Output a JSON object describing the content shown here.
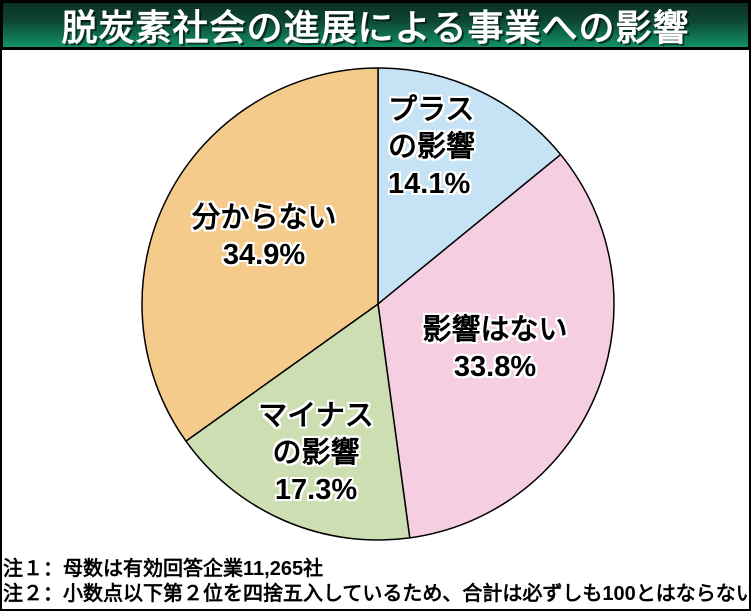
{
  "title": "脱炭素社会の進展による事業への影響",
  "chart_data": {
    "type": "pie",
    "title": "脱炭素社会の進展による事業への影響",
    "direction": "clockwise",
    "start_angle_deg": 0,
    "outline_color": "#000000",
    "slices": [
      {
        "id": "plus",
        "label": "プラスの影響",
        "value": 14.1,
        "pct_text": "14.1%",
        "color": "#c5e3f5",
        "label_text": "プラス\nの影響\n14.1%"
      },
      {
        "id": "none",
        "label": "影響はない",
        "value": 33.8,
        "pct_text": "33.8%",
        "color": "#f6cee2",
        "label_text": "影響はない\n33.8%"
      },
      {
        "id": "minus",
        "label": "マイナスの影響",
        "value": 17.3,
        "pct_text": "17.3%",
        "color": "#cddfb2",
        "label_text": "マイナス\nの影響\n17.3%"
      },
      {
        "id": "unknown",
        "label": "分からない",
        "value": 34.9,
        "pct_text": "34.9%",
        "color": "#f5cb8c",
        "label_text": "分からない\n34.9%"
      }
    ],
    "notes": [
      "注１：母数は有効回答企業11,265社",
      "注２：小数点以下第２位を四捨五入しているため、合計は必ずしも100とはならない"
    ]
  },
  "notes": {
    "note1": "注１：母数は有効回答企業11,265社",
    "note2": "注２：小数点以下第２位を四捨五入しているため、合計は必ずしも100とはならない"
  },
  "colors": {
    "title_gradient_top": "#0b3022",
    "title_gradient_bottom": "#12916a",
    "title_text": "#ffffff",
    "background": "#ffffff",
    "frame_border": "#000000"
  }
}
